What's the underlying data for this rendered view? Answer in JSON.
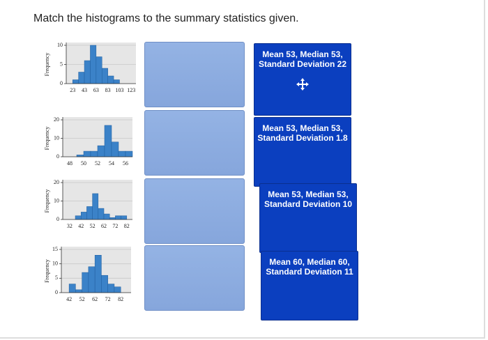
{
  "prompt": "Match the histograms to the summary statistics given.",
  "histograms": [
    {
      "ylabel": "Frequency",
      "ylim": [
        0,
        10
      ],
      "yticks": [
        0,
        5,
        10
      ],
      "xlim": [
        12,
        131
      ],
      "xticks": [
        23,
        43,
        63,
        83,
        103,
        123
      ],
      "bins": [
        23,
        33,
        43,
        53,
        63,
        73,
        83,
        93,
        103
      ],
      "counts": [
        1,
        3,
        6,
        10,
        7,
        4,
        2,
        1
      ],
      "color": "#3b82c8"
    },
    {
      "ylabel": "Frequency",
      "ylim": [
        0,
        20
      ],
      "yticks": [
        0,
        10,
        20
      ],
      "xlim": [
        47,
        57
      ],
      "xticks": [
        48,
        50,
        52,
        54,
        56
      ],
      "bins": [
        49,
        50,
        51,
        52,
        53,
        54,
        55,
        56,
        57
      ],
      "counts": [
        1,
        3,
        3,
        6,
        17,
        8,
        3,
        3
      ],
      "color": "#3b82c8"
    },
    {
      "ylabel": "Frequency",
      "ylim": [
        0,
        20
      ],
      "yticks": [
        0,
        10,
        20
      ],
      "xlim": [
        26,
        87
      ],
      "xticks": [
        32,
        42,
        52,
        62,
        72,
        82
      ],
      "bins": [
        37,
        42,
        47,
        52,
        57,
        62,
        67,
        72,
        77,
        82
      ],
      "counts": [
        2,
        4,
        7,
        14,
        6,
        3,
        1,
        2,
        2
      ],
      "color": "#3b82c8"
    },
    {
      "ylabel": "Frequency",
      "ylim": [
        0,
        15
      ],
      "yticks": [
        0,
        5,
        10,
        15
      ],
      "xlim": [
        36,
        90
      ],
      "xticks": [
        42,
        52,
        62,
        72,
        82
      ],
      "bins": [
        42,
        47,
        52,
        57,
        62,
        67,
        72,
        77,
        82
      ],
      "counts": [
        3,
        1,
        7,
        9,
        13,
        6,
        3,
        2
      ],
      "color": "#3b82c8"
    }
  ],
  "cards": [
    {
      "lines": [
        "Mean 53, Median 53,",
        "Standard Deviation 22"
      ]
    },
    {
      "lines": [
        "Mean 53, Median 53,",
        "Standard Deviation 1.8"
      ]
    },
    {
      "lines": [
        "Mean 53, Median 53,",
        "Standard Deviation 10"
      ]
    },
    {
      "lines": [
        "Mean 60, Median 60,",
        "Standard Deviation 11"
      ]
    }
  ]
}
